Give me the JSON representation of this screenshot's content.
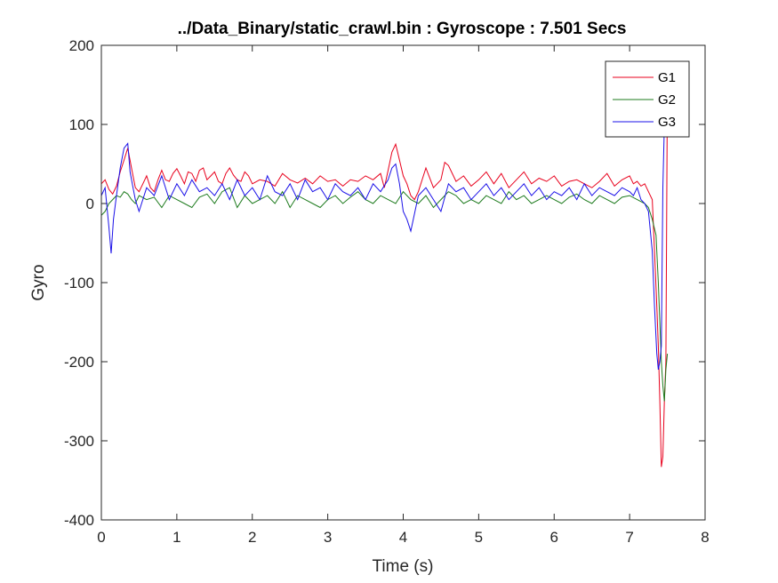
{
  "chart_data": {
    "type": "line",
    "title": "../Data_Binary/static_crawl.bin : Gyroscope : 7.501 Secs",
    "xlabel": "Time (s)",
    "ylabel": "Gyro",
    "xlim": [
      0,
      8
    ],
    "ylim": [
      -400,
      200
    ],
    "xticks": [
      0,
      1,
      2,
      3,
      4,
      5,
      6,
      7,
      8
    ],
    "yticks": [
      -400,
      -300,
      -200,
      -100,
      0,
      100,
      200
    ],
    "grid": false,
    "legend_position": "top-right",
    "series": [
      {
        "name": "G1",
        "color": "#e8001c",
        "x": [
          0,
          0.05,
          0.1,
          0.15,
          0.2,
          0.25,
          0.3,
          0.35,
          0.4,
          0.45,
          0.5,
          0.55,
          0.6,
          0.65,
          0.7,
          0.75,
          0.8,
          0.85,
          0.9,
          0.95,
          1.0,
          1.05,
          1.1,
          1.15,
          1.2,
          1.25,
          1.3,
          1.35,
          1.4,
          1.45,
          1.5,
          1.55,
          1.6,
          1.65,
          1.7,
          1.75,
          1.8,
          1.85,
          1.9,
          1.95,
          2.0,
          2.1,
          2.2,
          2.3,
          2.4,
          2.5,
          2.6,
          2.7,
          2.8,
          2.9,
          3.0,
          3.1,
          3.2,
          3.3,
          3.4,
          3.5,
          3.6,
          3.7,
          3.75,
          3.8,
          3.85,
          3.9,
          3.95,
          4.0,
          4.05,
          4.1,
          4.15,
          4.2,
          4.3,
          4.4,
          4.5,
          4.55,
          4.6,
          4.7,
          4.8,
          4.9,
          5.0,
          5.1,
          5.2,
          5.3,
          5.4,
          5.5,
          5.6,
          5.7,
          5.8,
          5.9,
          6.0,
          6.1,
          6.2,
          6.3,
          6.4,
          6.5,
          6.6,
          6.7,
          6.8,
          6.9,
          7.0,
          7.05,
          7.1,
          7.15,
          7.2,
          7.25,
          7.3,
          7.33,
          7.36,
          7.38,
          7.4,
          7.42,
          7.44,
          7.46,
          7.48,
          7.5
        ],
        "values": [
          25,
          30,
          18,
          12,
          22,
          40,
          55,
          70,
          45,
          20,
          15,
          25,
          35,
          20,
          15,
          30,
          42,
          30,
          28,
          38,
          44,
          35,
          25,
          40,
          38,
          28,
          42,
          45,
          30,
          35,
          40,
          28,
          25,
          38,
          45,
          36,
          30,
          28,
          40,
          35,
          25,
          30,
          28,
          22,
          38,
          30,
          26,
          32,
          25,
          35,
          28,
          30,
          22,
          30,
          28,
          35,
          30,
          38,
          20,
          42,
          65,
          75,
          55,
          35,
          25,
          10,
          5,
          15,
          45,
          20,
          30,
          52,
          48,
          28,
          35,
          22,
          30,
          40,
          25,
          38,
          20,
          30,
          40,
          25,
          32,
          28,
          35,
          22,
          28,
          30,
          25,
          20,
          28,
          38,
          22,
          30,
          35,
          25,
          28,
          22,
          25,
          15,
          5,
          -60,
          -130,
          -180,
          -250,
          -333,
          -320,
          -250,
          -200,
          150
        ]
      },
      {
        "name": "G2",
        "color": "#1e7b1e",
        "x": [
          0,
          0.05,
          0.1,
          0.15,
          0.2,
          0.25,
          0.3,
          0.35,
          0.4,
          0.45,
          0.5,
          0.6,
          0.7,
          0.8,
          0.9,
          1.0,
          1.1,
          1.2,
          1.3,
          1.4,
          1.5,
          1.6,
          1.7,
          1.8,
          1.9,
          2.0,
          2.1,
          2.2,
          2.3,
          2.4,
          2.5,
          2.6,
          2.7,
          2.8,
          2.9,
          3.0,
          3.1,
          3.2,
          3.3,
          3.4,
          3.5,
          3.6,
          3.7,
          3.8,
          3.9,
          4.0,
          4.1,
          4.2,
          4.3,
          4.4,
          4.5,
          4.6,
          4.7,
          4.8,
          4.9,
          5.0,
          5.1,
          5.2,
          5.3,
          5.4,
          5.5,
          5.6,
          5.7,
          5.8,
          5.9,
          6.0,
          6.1,
          6.2,
          6.3,
          6.4,
          6.5,
          6.6,
          6.7,
          6.8,
          6.9,
          7.0,
          7.1,
          7.2,
          7.25,
          7.3,
          7.35,
          7.38,
          7.4,
          7.42,
          7.44,
          7.46,
          7.48,
          7.5
        ],
        "values": [
          -15,
          -10,
          0,
          5,
          10,
          8,
          15,
          12,
          5,
          0,
          10,
          5,
          8,
          -5,
          10,
          5,
          0,
          -5,
          8,
          12,
          0,
          15,
          20,
          -5,
          10,
          0,
          5,
          10,
          0,
          15,
          -5,
          10,
          5,
          0,
          -5,
          5,
          10,
          0,
          8,
          15,
          5,
          0,
          10,
          5,
          0,
          15,
          5,
          0,
          10,
          -5,
          5,
          15,
          10,
          0,
          5,
          0,
          10,
          5,
          0,
          15,
          5,
          10,
          0,
          5,
          10,
          5,
          0,
          8,
          12,
          5,
          0,
          10,
          5,
          0,
          8,
          10,
          5,
          0,
          -5,
          -20,
          -40,
          -100,
          -150,
          -200,
          -230,
          -250,
          -210,
          -190
        ]
      },
      {
        "name": "G3",
        "color": "#1a10e8",
        "x": [
          0,
          0.05,
          0.1,
          0.13,
          0.16,
          0.2,
          0.25,
          0.3,
          0.35,
          0.38,
          0.42,
          0.45,
          0.5,
          0.6,
          0.7,
          0.8,
          0.9,
          1.0,
          1.1,
          1.2,
          1.3,
          1.4,
          1.5,
          1.6,
          1.7,
          1.8,
          1.9,
          2.0,
          2.1,
          2.2,
          2.3,
          2.4,
          2.5,
          2.6,
          2.7,
          2.8,
          2.9,
          3.0,
          3.1,
          3.2,
          3.3,
          3.4,
          3.5,
          3.6,
          3.7,
          3.8,
          3.85,
          3.9,
          3.95,
          4.0,
          4.05,
          4.1,
          4.2,
          4.3,
          4.4,
          4.5,
          4.6,
          4.7,
          4.8,
          4.9,
          5.0,
          5.1,
          5.2,
          5.3,
          5.4,
          5.5,
          5.6,
          5.7,
          5.8,
          5.9,
          6.0,
          6.1,
          6.2,
          6.3,
          6.4,
          6.5,
          6.6,
          6.7,
          6.8,
          6.9,
          7.0,
          7.05,
          7.1,
          7.15,
          7.2,
          7.25,
          7.3,
          7.33,
          7.36,
          7.38,
          7.4,
          7.42,
          7.44,
          7.46,
          7.48,
          7.5
        ],
        "values": [
          10,
          20,
          -30,
          -63,
          -20,
          10,
          45,
          70,
          76,
          40,
          20,
          5,
          -10,
          20,
          10,
          35,
          5,
          25,
          10,
          30,
          15,
          20,
          10,
          25,
          5,
          30,
          10,
          20,
          5,
          35,
          15,
          10,
          25,
          5,
          30,
          15,
          20,
          5,
          25,
          15,
          10,
          20,
          5,
          25,
          15,
          30,
          45,
          50,
          25,
          -10,
          -20,
          -35,
          10,
          20,
          5,
          -10,
          25,
          15,
          20,
          5,
          15,
          25,
          10,
          20,
          5,
          15,
          25,
          10,
          20,
          5,
          15,
          10,
          20,
          5,
          25,
          10,
          20,
          15,
          10,
          20,
          15,
          10,
          20,
          5,
          0,
          -10,
          -60,
          -130,
          -190,
          -210,
          -200,
          -180,
          20,
          100,
          150,
          180
        ]
      }
    ]
  }
}
